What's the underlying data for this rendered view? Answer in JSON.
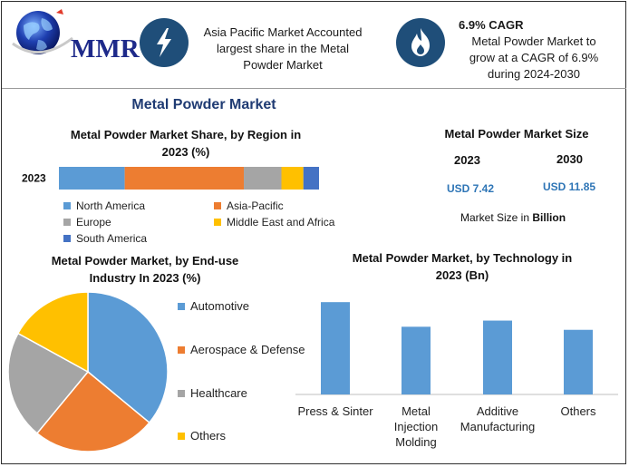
{
  "brand": {
    "logo_text": "MMR"
  },
  "callouts": [
    {
      "icon": "lightning-icon",
      "lines": [
        "Asia Pacific Market Accounted",
        "largest share in the Metal",
        "Powder Market"
      ]
    },
    {
      "icon": "flame-icon",
      "headline": "6.9% CAGR",
      "lines": [
        "Metal Powder Market to",
        "grow at a CAGR of 6.9%",
        "during 2024-2030"
      ]
    }
  ],
  "main_title": "Metal Powder Market",
  "share_section": {
    "title_lines": [
      "Metal Powder Market Share, by Region in",
      "2023 (%)"
    ]
  },
  "size_section": {
    "title": "Metal Powder Market Size",
    "years": [
      "2023",
      "2030"
    ],
    "values": [
      "USD 7.42",
      "USD 11.85"
    ],
    "caption_prefix": "Market Size in ",
    "caption_unit": "Billion"
  },
  "enduse_section": {
    "title_lines": [
      "Metal Powder Market, by End-use",
      "Industry In 2023 (%)"
    ]
  },
  "technology_section": {
    "title_lines": [
      "Metal Powder Market, by Technology in",
      "2023 (Bn)"
    ]
  },
  "colors": {
    "blue": "#5b9bd5",
    "orange": "#ed7d31",
    "gray": "#a5a5a5",
    "yellow": "#ffc000",
    "darkblue": "#4472c4",
    "navy_icon": "#1f4e79"
  },
  "chart_data": [
    {
      "type": "bar",
      "orientation": "horizontal-stacked",
      "categories": [
        "2023"
      ],
      "series": [
        {
          "name": "North America",
          "values": [
            21
          ],
          "color": "#5b9bd5"
        },
        {
          "name": "Asia-Pacific",
          "values": [
            38
          ],
          "color": "#ed7d31"
        },
        {
          "name": "Europe",
          "values": [
            12
          ],
          "color": "#a5a5a5"
        },
        {
          "name": "Middle East and Africa",
          "values": [
            7
          ],
          "color": "#ffc000"
        },
        {
          "name": "South America",
          "values": [
            5
          ],
          "color": "#4472c4"
        }
      ],
      "legend_position": "bottom"
    },
    {
      "type": "pie",
      "slices": [
        {
          "name": "Automotive",
          "value": 36,
          "color": "#5b9bd5"
        },
        {
          "name": "Aerospace & Defense",
          "value": 25,
          "color": "#ed7d31"
        },
        {
          "name": "Healthcare",
          "value": 22,
          "color": "#a5a5a5"
        },
        {
          "name": "Others",
          "value": 17,
          "color": "#ffc000"
        }
      ],
      "legend_position": "right"
    },
    {
      "type": "bar",
      "categories": [
        [
          "Press & Sinter"
        ],
        [
          "Metal",
          "Injection",
          "Molding"
        ],
        [
          "Additive",
          "Manufacturing"
        ],
        [
          "Others"
        ]
      ],
      "values": [
        3.0,
        2.2,
        2.4,
        2.1
      ],
      "ylim": [
        0,
        3.3
      ],
      "color": "#5b9bd5",
      "grid": false
    }
  ]
}
